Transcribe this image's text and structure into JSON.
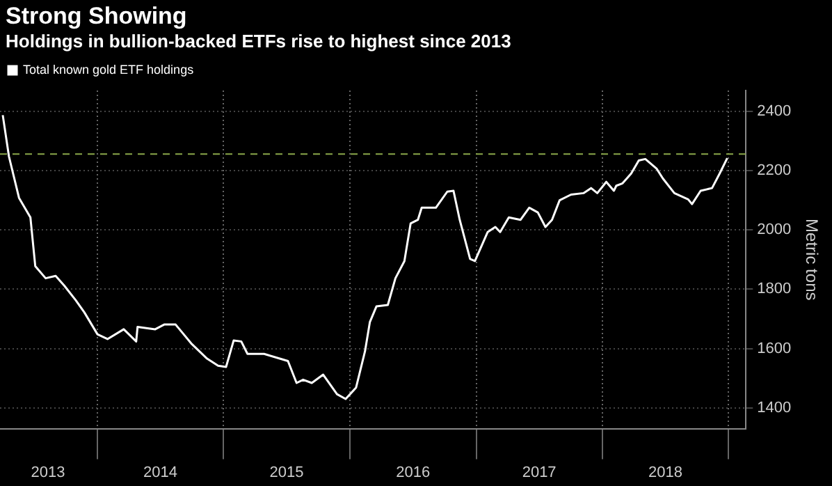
{
  "chart_data": {
    "type": "line",
    "title": "Strong Showing",
    "subtitle": "Holdings in bullion-backed ETFs rise to highest since 2013",
    "ylabel": "Metric tons",
    "x": [
      "2013-04-02",
      "2013-04-20",
      "2013-05-19",
      "2013-06-21",
      "2013-07-05",
      "2013-08-04",
      "2013-09-02",
      "2013-09-27",
      "2013-10-30",
      "2013-11-24",
      "2014-01-01",
      "2014-01-30",
      "2014-03-18",
      "2014-04-23",
      "2014-04-27",
      "2014-06-17",
      "2014-07-13",
      "2014-08-15",
      "2014-10-01",
      "2014-11-14",
      "2014-12-16",
      "2015-01-08",
      "2015-01-30",
      "2015-02-21",
      "2015-03-11",
      "2015-04-28",
      "2015-07-06",
      "2015-07-31",
      "2015-08-19",
      "2015-09-13",
      "2015-10-16",
      "2015-11-25",
      "2015-12-20",
      "2016-01-19",
      "2016-02-14",
      "2016-02-28",
      "2016-03-18",
      "2016-04-20",
      "2016-05-12",
      "2016-06-07",
      "2016-06-25",
      "2016-07-16",
      "2016-07-27",
      "2016-09-06",
      "2016-10-09",
      "2016-10-27",
      "2016-11-14",
      "2016-12-14",
      "2016-12-28",
      "2017-02-03",
      "2017-02-25",
      "2017-03-11",
      "2017-04-05",
      "2017-05-09",
      "2017-06-03",
      "2017-06-28",
      "2017-07-20",
      "2017-08-08",
      "2017-08-30",
      "2017-10-02",
      "2017-11-07",
      "2017-11-29",
      "2017-12-17",
      "2018-01-12",
      "2018-02-03",
      "2018-02-10",
      "2018-02-28",
      "2018-03-25",
      "2018-04-16",
      "2018-05-05",
      "2018-06-07",
      "2018-06-25",
      "2018-07-28",
      "2018-09-06",
      "2018-09-17",
      "2018-10-12",
      "2018-11-14",
      "2018-12-06",
      "2018-12-28"
    ],
    "series": [
      {
        "name": "Total known gold ETF holdings",
        "color": "#ffffff",
        "values": [
          2387,
          2247,
          2108,
          2042,
          1878,
          1837,
          1845,
          1812,
          1763,
          1722,
          1648,
          1632,
          1665,
          1624,
          1673,
          1665,
          1681,
          1681,
          1615,
          1566,
          1542,
          1538,
          1627,
          1624,
          1582,
          1582,
          1558,
          1484,
          1495,
          1484,
          1512,
          1446,
          1430,
          1468,
          1591,
          1689,
          1742,
          1747,
          1837,
          1895,
          2022,
          2034,
          2075,
          2075,
          2129,
          2132,
          2034,
          1902,
          1895,
          1993,
          2010,
          1993,
          2042,
          2034,
          2075,
          2059,
          2010,
          2034,
          2100,
          2119,
          2124,
          2141,
          2124,
          2162,
          2132,
          2149,
          2157,
          2190,
          2234,
          2239,
          2206,
          2173,
          2124,
          2103,
          2087,
          2132,
          2141,
          2190,
          2242
        ]
      }
    ],
    "xlim": [
      "2013-03-25",
      "2019-02-20"
    ],
    "xticks": [
      {
        "value": "2013-08-11",
        "label": "2013"
      },
      {
        "value": "2014-01-01",
        "label": null
      },
      {
        "value": "2014-07-02",
        "label": "2014"
      },
      {
        "value": "2015-01-01",
        "label": null
      },
      {
        "value": "2015-07-02",
        "label": "2015"
      },
      {
        "value": "2016-01-01",
        "label": null
      },
      {
        "value": "2016-07-02",
        "label": "2016"
      },
      {
        "value": "2017-01-01",
        "label": null
      },
      {
        "value": "2017-07-02",
        "label": "2017"
      },
      {
        "value": "2018-01-01",
        "label": null
      },
      {
        "value": "2018-07-02",
        "label": "2018"
      },
      {
        "value": "2019-01-01",
        "label": null
      }
    ],
    "ylim": [
      1330,
      2470
    ],
    "yticks": [
      1400,
      1600,
      1800,
      2000,
      2200,
      2400
    ],
    "grid": true,
    "legend": "top left",
    "ref_lines": [
      {
        "axis": "y",
        "value": 2256,
        "color": "#8aa84a",
        "line_style": "dashed"
      }
    ]
  }
}
